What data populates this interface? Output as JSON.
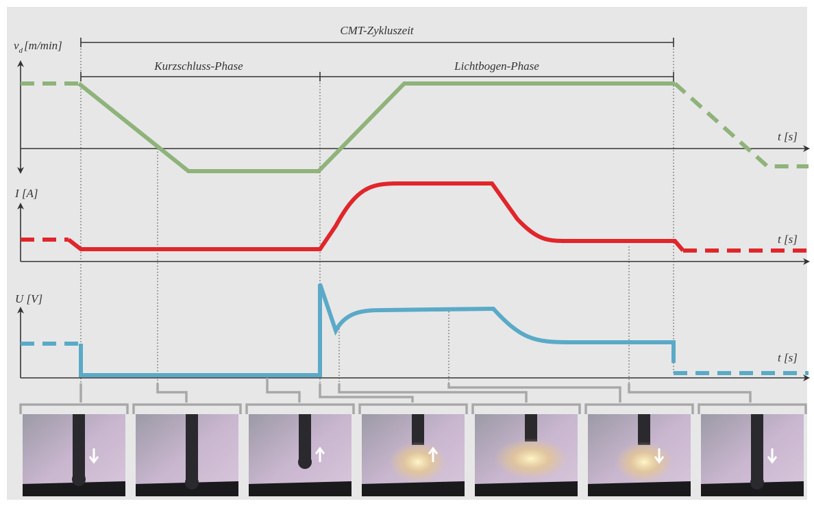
{
  "labels": {
    "cycle": "CMT-Zykluszeit",
    "short_circuit": "Kurzschluss-Phase",
    "arc": "Lichtbogen-Phase"
  },
  "axes": {
    "wire_speed": {
      "symbol": "v",
      "subscript": "d",
      "unit": "[m/min]",
      "time": "t [s]"
    },
    "current": {
      "label": "I [A]",
      "time": "t [s]"
    },
    "voltage": {
      "label": "U [V]",
      "time": "t [s]"
    }
  }
}
